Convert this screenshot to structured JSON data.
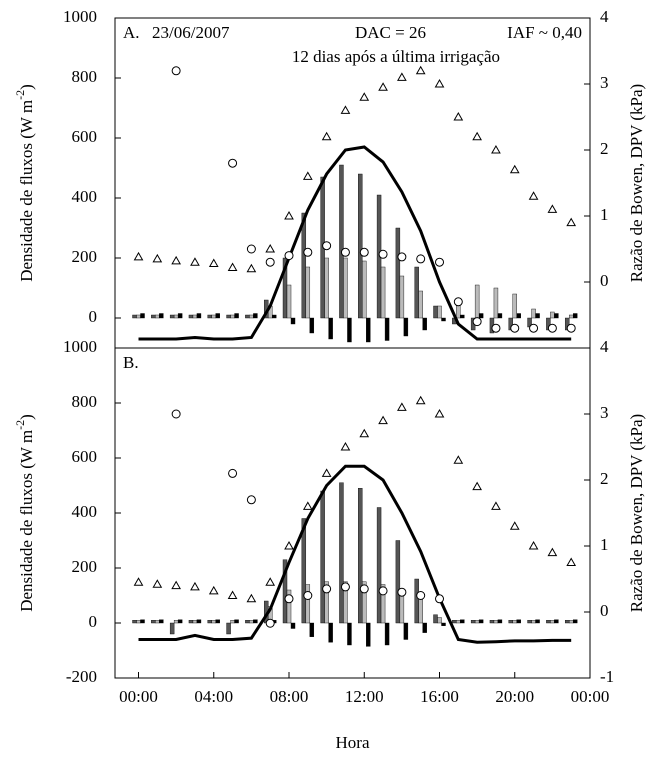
{
  "chart_data": [
    {
      "type": "combo",
      "annotations": [
        "A.",
        "23/06/2007",
        "DAC = 26",
        "IAF ~ 0,40",
        "12 dias após a última irrigação"
      ],
      "ylabel": [
        "Densidade de fluxos (W m",
        "-2",
        ")"
      ],
      "y2label": "Razão de Bowen, DPV (kPa)",
      "x": [
        0,
        1,
        2,
        3,
        4,
        5,
        6,
        7,
        8,
        9,
        10,
        11,
        12,
        13,
        14,
        15,
        16,
        17,
        18,
        19,
        20,
        21,
        22,
        23
      ],
      "xlim": [
        -1.25,
        24
      ],
      "ylim": [
        -100,
        1000
      ],
      "yticks": [
        0,
        200,
        400,
        600,
        800,
        1000
      ],
      "y2lim": [
        -1,
        4
      ],
      "y2ticks": [
        0,
        1,
        2,
        3,
        4
      ],
      "series": [
        {
          "mark": "bar",
          "color": "#555555",
          "values": [
            10,
            10,
            10,
            10,
            10,
            10,
            10,
            60,
            200,
            350,
            470,
            510,
            480,
            410,
            300,
            170,
            40,
            -20,
            -40,
            -50,
            -40,
            -30,
            -40,
            -40
          ]
        },
        {
          "mark": "bar",
          "color": "#bbbbbb",
          "values": [
            10,
            10,
            10,
            10,
            10,
            10,
            10,
            40,
            110,
            170,
            200,
            200,
            190,
            170,
            140,
            90,
            40,
            60,
            110,
            100,
            80,
            30,
            20,
            10
          ]
        },
        {
          "mark": "bar",
          "color": "#000000",
          "values": [
            15,
            15,
            15,
            15,
            15,
            15,
            15,
            10,
            -20,
            -50,
            -70,
            -80,
            -80,
            -75,
            -60,
            -40,
            -10,
            10,
            15,
            15,
            15,
            15,
            15,
            15
          ]
        },
        {
          "mark": "line",
          "color": "#000000",
          "values": [
            -70,
            -70,
            -70,
            -65,
            -70,
            -70,
            -65,
            40,
            200,
            360,
            480,
            560,
            570,
            520,
            420,
            290,
            120,
            -20,
            -70,
            -70,
            -70,
            -70,
            -70,
            -70
          ]
        },
        {
          "mark": "circle",
          "color": "#ffffff",
          "axis": "y2",
          "values": [
            null,
            null,
            3.2,
            null,
            null,
            1.8,
            0.5,
            0.3,
            0.4,
            0.45,
            0.55,
            0.45,
            0.45,
            0.42,
            0.38,
            0.35,
            0.3,
            -0.3,
            -0.6,
            -0.7,
            -0.7,
            -0.7,
            -0.7,
            -0.7
          ]
        },
        {
          "mark": "triangle",
          "color": "#ffffff",
          "axis": "y2",
          "values": [
            0.38,
            0.35,
            0.32,
            0.3,
            0.28,
            0.22,
            0.2,
            0.5,
            1.0,
            1.6,
            2.2,
            2.6,
            2.8,
            2.95,
            3.1,
            3.2,
            3.0,
            2.5,
            2.2,
            2.0,
            1.7,
            1.3,
            1.1,
            0.9
          ]
        }
      ]
    },
    {
      "type": "combo",
      "annotations": [
        "B."
      ],
      "ylabel": [
        "Densidade de fluxos (W m",
        "-2",
        ")"
      ],
      "y2label": "Razão de Bowen, DPV (kPa)",
      "xlabel": "Hora",
      "x": [
        0,
        1,
        2,
        3,
        4,
        5,
        6,
        7,
        8,
        9,
        10,
        11,
        12,
        13,
        14,
        15,
        16,
        17,
        18,
        19,
        20,
        21,
        22,
        23
      ],
      "xlim": [
        -1.25,
        24
      ],
      "xticks": [
        {
          "value": 0,
          "label": "00:00"
        },
        {
          "value": 4,
          "label": "04:00"
        },
        {
          "value": 8,
          "label": "08:00"
        },
        {
          "value": 12,
          "label": "12:00"
        },
        {
          "value": 16,
          "label": "16:00"
        },
        {
          "value": 20,
          "label": "20:00"
        },
        {
          "value": 24,
          "label": "00:00"
        }
      ],
      "ylim": [
        -200,
        1000
      ],
      "yticks": [
        -200,
        0,
        200,
        400,
        600,
        800,
        1000
      ],
      "y2lim": [
        -1,
        4
      ],
      "y2ticks": [
        -1,
        0,
        1,
        2,
        3,
        4
      ],
      "series": [
        {
          "mark": "bar",
          "color": "#555555",
          "values": [
            10,
            10,
            -40,
            10,
            10,
            -40,
            10,
            80,
            230,
            380,
            480,
            510,
            490,
            420,
            300,
            160,
            30,
            10,
            10,
            10,
            10,
            10,
            10,
            10
          ]
        },
        {
          "mark": "bar",
          "color": "#bbbbbb",
          "values": [
            10,
            10,
            10,
            10,
            10,
            10,
            10,
            60,
            120,
            140,
            150,
            150,
            150,
            140,
            120,
            90,
            20,
            10,
            10,
            10,
            10,
            10,
            10,
            10
          ]
        },
        {
          "mark": "bar",
          "color": "#000000",
          "values": [
            12,
            12,
            12,
            12,
            12,
            12,
            12,
            10,
            -20,
            -50,
            -70,
            -80,
            -85,
            -80,
            -60,
            -35,
            -10,
            12,
            12,
            12,
            12,
            12,
            12,
            12
          ]
        },
        {
          "mark": "line",
          "color": "#000000",
          "values": [
            -60,
            -60,
            -60,
            -45,
            -60,
            -60,
            -55,
            50,
            220,
            380,
            500,
            570,
            570,
            520,
            400,
            260,
            90,
            -60,
            -70,
            -68,
            -65,
            -65,
            -63,
            -63
          ]
        },
        {
          "mark": "circle",
          "color": "#ffffff",
          "axis": "y2",
          "values": [
            null,
            null,
            3.0,
            null,
            null,
            2.1,
            1.7,
            -0.17,
            0.2,
            0.25,
            0.35,
            0.38,
            0.35,
            0.32,
            0.3,
            0.25,
            0.2,
            null,
            null,
            null,
            null,
            null,
            null,
            null
          ]
        },
        {
          "mark": "triangle",
          "color": "#ffffff",
          "axis": "y2",
          "values": [
            0.45,
            0.42,
            0.4,
            0.38,
            0.32,
            0.25,
            0.2,
            0.45,
            1.0,
            1.6,
            2.1,
            2.5,
            2.7,
            2.9,
            3.1,
            3.2,
            3.0,
            2.3,
            1.9,
            1.6,
            1.3,
            1.0,
            0.9,
            0.75
          ]
        }
      ]
    }
  ]
}
